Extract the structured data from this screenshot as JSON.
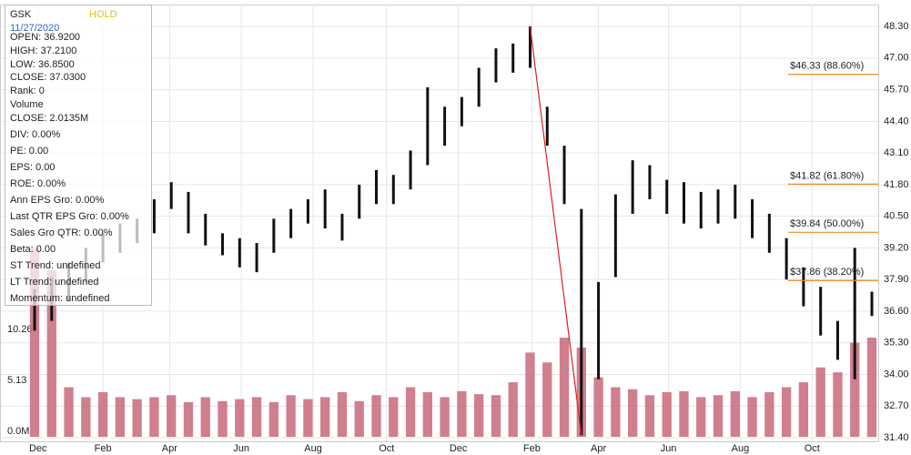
{
  "info_panel": {
    "symbol": "GSK",
    "rating": "HOLD",
    "date": "11/27/2020",
    "lines": [
      "OPEN: 36.9200",
      "HIGH: 37.2100",
      "LOW: 36.8500",
      "CLOSE: 37.0300",
      "Rank: 0",
      "Volume",
      "CLOSE: 2.0135M",
      "DIV: 0.00%",
      "PE: 0.00",
      "EPS: 0.00",
      "ROE: 0.00%",
      "Ann EPS Gro: 0.00%",
      "Last QTR EPS Gro: 0.00%",
      "Sales Gro QTR: 0.00%",
      "Beta: 0.00",
      "ST Trend: undefined",
      "LT Trend: undefined",
      "Momentum: undefined"
    ]
  },
  "chart_data": {
    "type": "hilo",
    "color": "#111111",
    "volume_color": "#c8687a",
    "grid": true,
    "high": [
      37.5,
      38.0,
      38.6,
      39.2,
      39.8,
      40.2,
      40.4,
      41.2,
      41.9,
      41.5,
      40.6,
      39.8,
      39.6,
      39.4,
      40.4,
      40.8,
      41.2,
      41.6,
      40.6,
      41.8,
      42.4,
      42.2,
      43.2,
      45.8,
      45.0,
      45.4,
      46.6,
      47.4,
      47.6,
      48.3,
      45.0,
      43.4,
      40.8,
      37.8,
      41.4,
      42.8,
      42.6,
      42.0,
      41.9,
      41.5,
      41.6,
      41.8,
      41.2,
      40.6,
      39.6,
      38.4,
      37.6,
      36.2,
      39.2,
      37.4
    ],
    "low": [
      35.8,
      36.2,
      37.0,
      37.8,
      38.6,
      39.0,
      39.4,
      39.8,
      40.8,
      39.8,
      39.3,
      38.9,
      38.4,
      38.2,
      39.0,
      39.6,
      40.2,
      40.0,
      39.5,
      40.4,
      41.0,
      41.0,
      41.6,
      42.6,
      43.4,
      44.2,
      45.0,
      46.0,
      46.4,
      46.6,
      43.4,
      41.0,
      31.5,
      33.8,
      38.0,
      40.6,
      41.2,
      40.6,
      40.2,
      40.0,
      40.2,
      40.4,
      39.6,
      39.0,
      37.9,
      36.8,
      35.6,
      34.6,
      33.8,
      36.4
    ],
    "volume": [
      19,
      16.8,
      5,
      4,
      4.5,
      4,
      3.8,
      4,
      4.2,
      3.5,
      4,
      3.6,
      3.8,
      4,
      3.5,
      4.2,
      3.8,
      4,
      4.5,
      3.6,
      4.2,
      4,
      5,
      4.5,
      4,
      4.6,
      4.3,
      4.2,
      5.5,
      8.5,
      7.5,
      10,
      9,
      6,
      5,
      4.8,
      4.2,
      4.5,
      4.6,
      4,
      4.2,
      4.6,
      4,
      4.5,
      5,
      5.5,
      7,
      6.5,
      9.5,
      10
    ],
    "ylim": [
      31.25,
      49.2
    ],
    "yticks": [
      {
        "value": 48.3,
        "label": "48.30"
      },
      {
        "value": 47,
        "label": "47.00"
      },
      {
        "value": 45.7,
        "label": "45.70"
      },
      {
        "value": 44.4,
        "label": "44.40"
      },
      {
        "value": 43.1,
        "label": "43.10"
      },
      {
        "value": 41.8,
        "label": "41.80"
      },
      {
        "value": 40.5,
        "label": "40.50"
      },
      {
        "value": 39.2,
        "label": "39.20"
      },
      {
        "value": 37.9,
        "label": "37.90"
      },
      {
        "value": 36.6,
        "label": "36.60"
      },
      {
        "value": 35.3,
        "label": "35.30"
      },
      {
        "value": 34,
        "label": "34.00"
      },
      {
        "value": 32.7,
        "label": "32.70"
      },
      {
        "value": 31.4,
        "label": "31.40"
      }
    ],
    "y2lim": [
      0,
      43.6
    ],
    "y2ticks": [
      {
        "value": 0,
        "label": "0.0M"
      },
      5.13,
      10.26
    ],
    "xticks": [
      {
        "value": 0.2,
        "label": "Dec"
      },
      {
        "value": 4.0,
        "label": "Feb"
      },
      {
        "value": 7.9,
        "label": "Apr"
      },
      {
        "value": 12.1,
        "label": "Jun"
      },
      {
        "value": 16.3,
        "label": "Aug"
      },
      {
        "value": 20.6,
        "label": "Oct"
      },
      {
        "value": 24.8,
        "label": "Dec"
      },
      {
        "value": 29.1,
        "label": "Feb"
      },
      {
        "value": 33.0,
        "label": "Apr"
      },
      {
        "value": 37.1,
        "label": "Jun"
      },
      {
        "value": 41.3,
        "label": "Aug"
      },
      {
        "value": 45.5,
        "label": "Oct"
      }
    ],
    "trendline": {
      "from": [
        29,
        48.3
      ],
      "to": [
        32,
        31.5
      ],
      "color": "#e02020"
    },
    "fib_color": "#f08a24",
    "fib_levels": [
      {
        "value": 46.33,
        "label": "$46.33 (88.60%)"
      },
      {
        "value": 41.82,
        "label": "$41.82 (61.80%)"
      },
      {
        "value": 39.84,
        "label": "$39.84 (50.00%)"
      },
      {
        "value": 37.86,
        "label": "$37.86 (38.20%)"
      }
    ]
  }
}
